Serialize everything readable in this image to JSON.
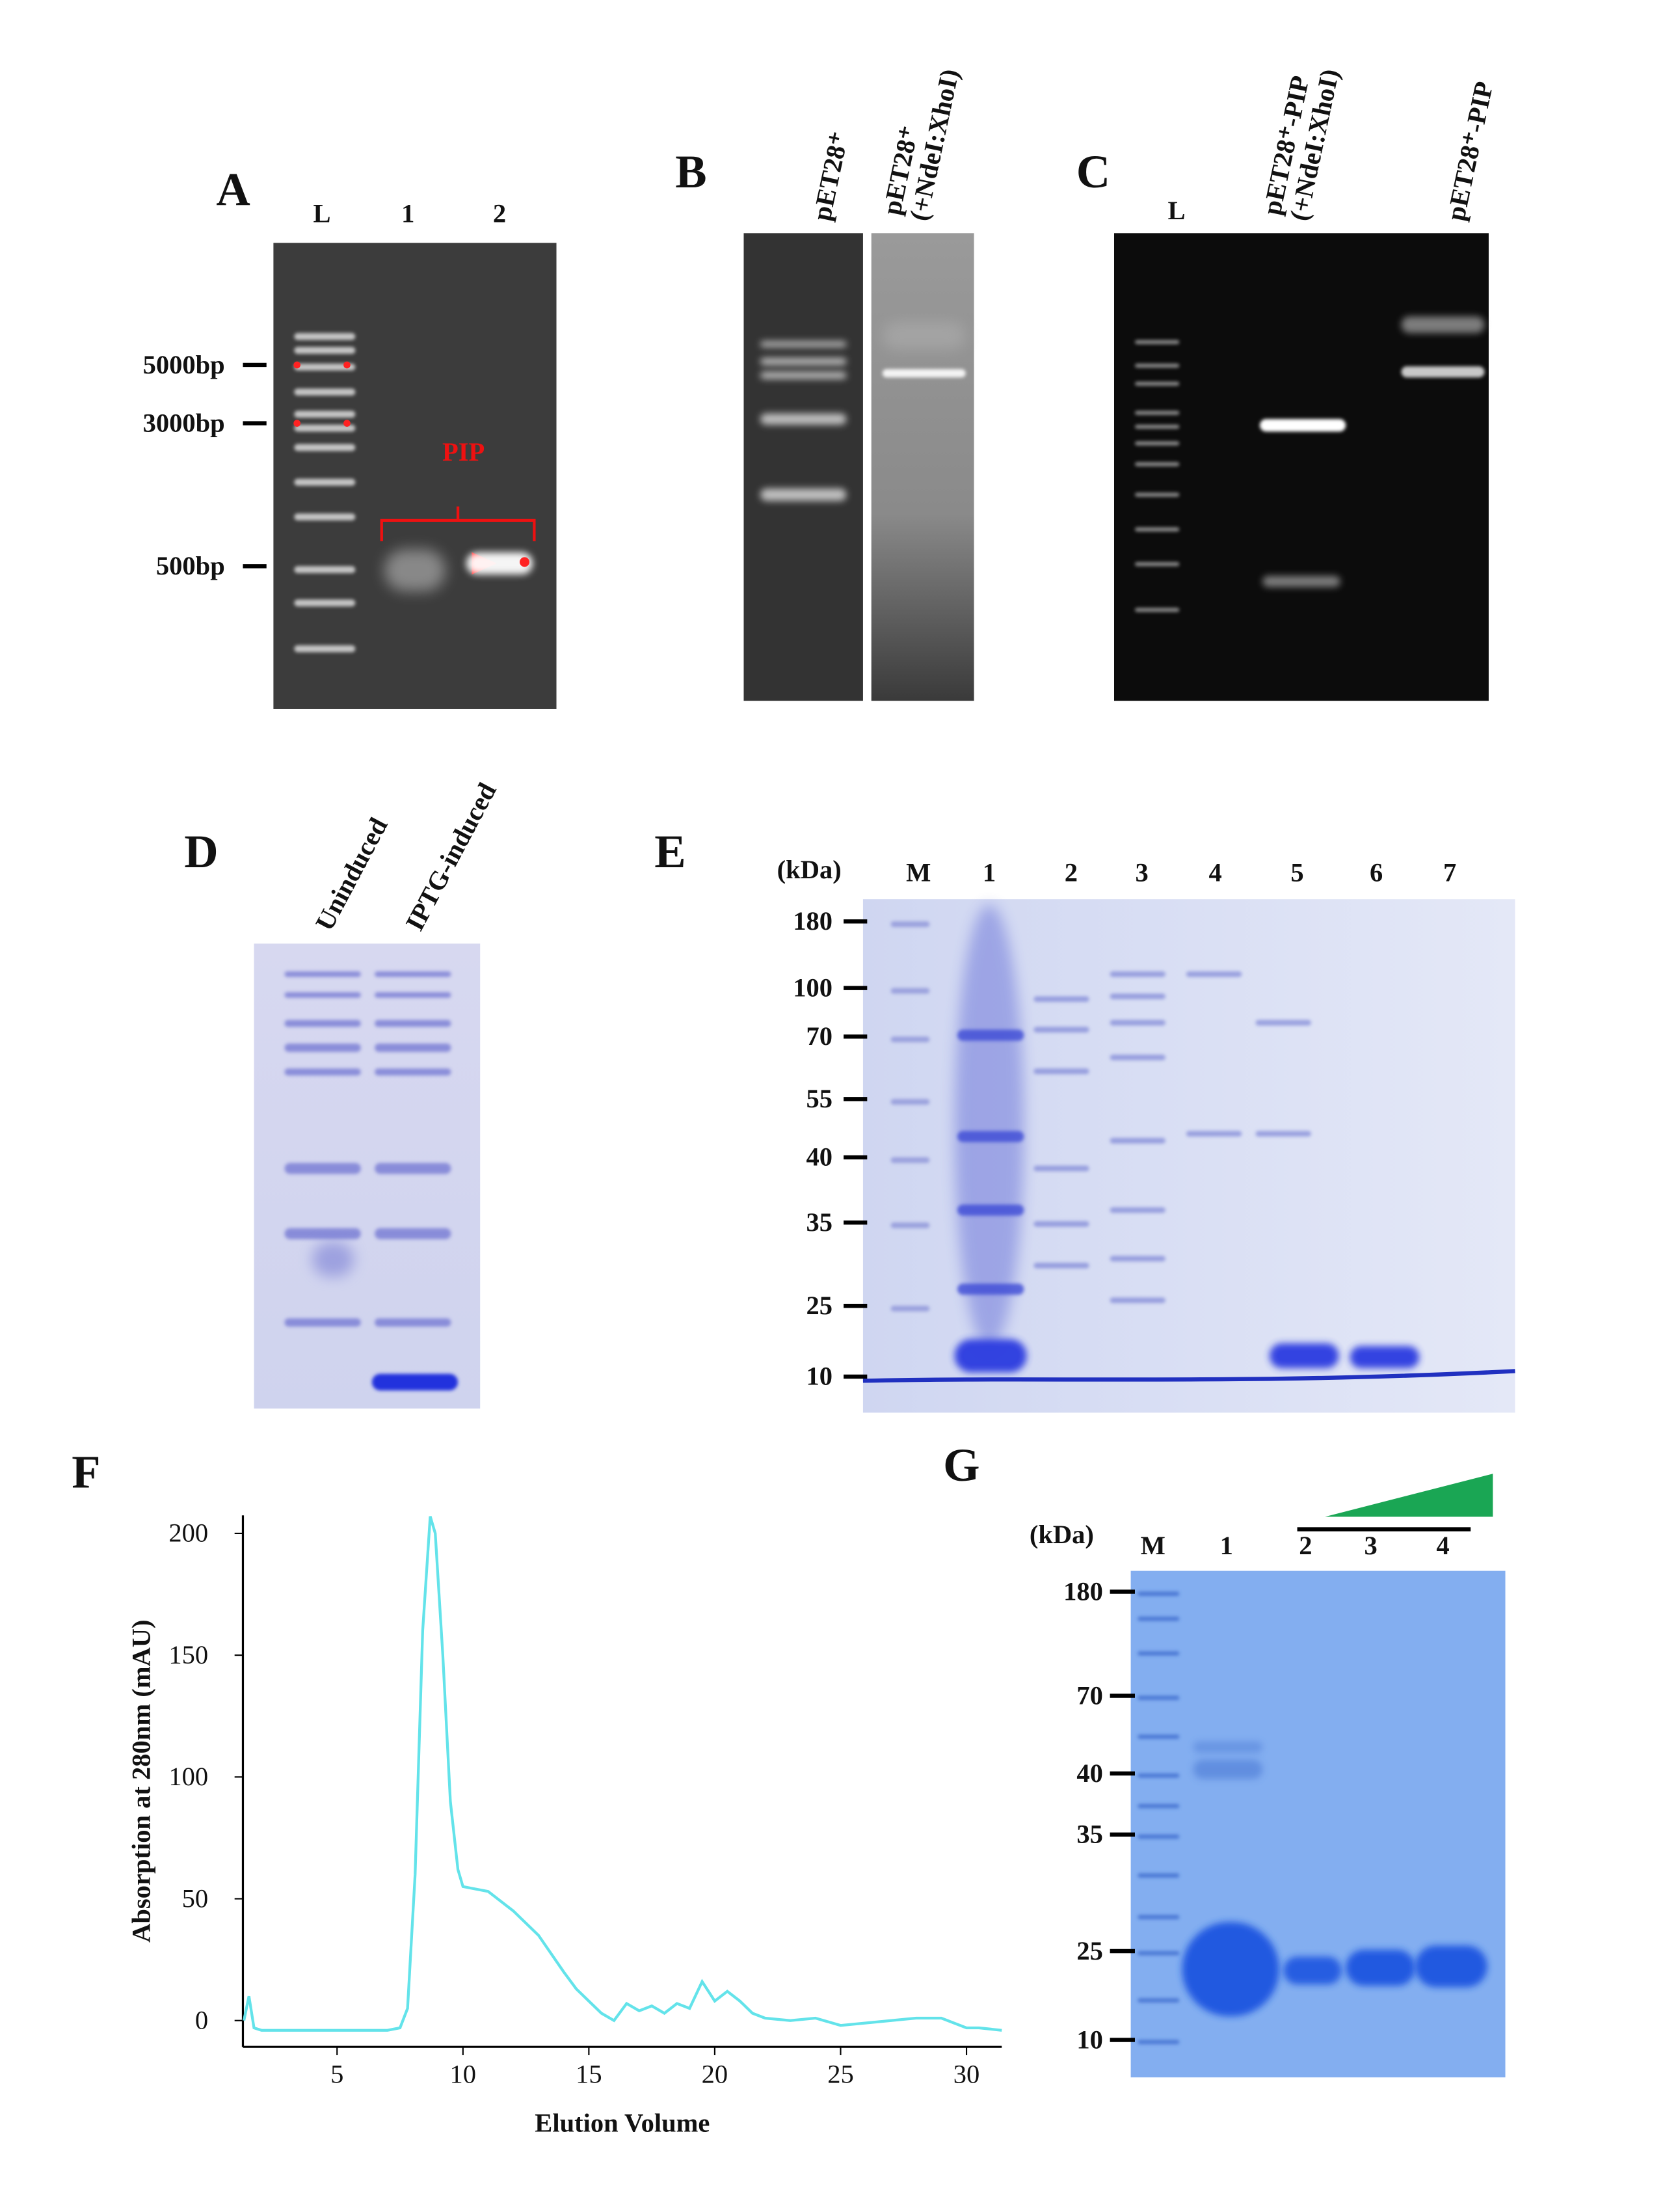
{
  "panels": [
    {
      "label": "A",
      "lanes": [
        "L",
        "1",
        "2"
      ],
      "markers": [
        "5000bp",
        "3000bp",
        "500bp"
      ],
      "annotation": "PIP"
    },
    {
      "label": "B",
      "lanes": [
        [
          "pET28⁺"
        ],
        [
          "pET28⁺",
          "(+NdeI:XhoI)"
        ]
      ]
    },
    {
      "label": "C",
      "lanes": [
        [
          "L"
        ],
        [
          "pET28⁺-PIP",
          "(+NdeI:XhoI)"
        ],
        [
          "pET28⁺-PIP"
        ]
      ]
    },
    {
      "label": "D",
      "lanes": [
        [
          "Uninduced"
        ],
        [
          "IPTG-induced"
        ]
      ]
    },
    {
      "label": "E",
      "unit": "(kDa)",
      "lanes": [
        "M",
        "1",
        "2",
        "3",
        "4",
        "5",
        "6",
        "7"
      ],
      "markers": [
        "180",
        "100",
        "70",
        "55",
        "40",
        "35",
        "25",
        "10"
      ]
    },
    {
      "label": "G",
      "unit": "(kDa)",
      "lanes": [
        "M",
        "1",
        "2",
        "3",
        "4"
      ],
      "markers": [
        "180",
        "70",
        "40",
        "35",
        "25",
        "10"
      ]
    }
  ],
  "chart_data": {
    "type": "line",
    "panel_label": "F",
    "xlabel": "Elution Volume",
    "ylabel": "Absorption at 280nm (mAU)",
    "color": "#63e3ea",
    "x": [
      1.3,
      1.5,
      1.7,
      2,
      3,
      4,
      5,
      6,
      7,
      7.5,
      7.8,
      8.1,
      8.4,
      8.7,
      8.9,
      9.2,
      9.5,
      9.8,
      10,
      10.5,
      11,
      12,
      13,
      14,
      14.5,
      15,
      15.5,
      16,
      16.5,
      17,
      17.5,
      18,
      18.5,
      19,
      19.5,
      20,
      20.5,
      21,
      21.5,
      22,
      23,
      24,
      25,
      26,
      27,
      28,
      29,
      30,
      30.5,
      31.4
    ],
    "values": [
      0,
      10,
      -3,
      -4,
      -4,
      -4,
      -4,
      -4,
      -4,
      -3,
      5,
      60,
      160,
      207,
      200,
      150,
      90,
      62,
      55,
      54,
      53,
      45,
      35,
      20,
      13,
      8,
      3,
      0,
      7,
      4,
      6,
      3,
      7,
      5,
      16,
      8,
      12,
      8,
      3,
      1,
      0,
      1,
      -2,
      -1,
      0,
      1,
      1,
      -3,
      -3,
      -4
    ],
    "xlim": [
      1.26,
      31.4
    ],
    "ylim": [
      -10.8,
      207.4
    ],
    "xticks": [
      5,
      10,
      15,
      20,
      25,
      30
    ],
    "yticks": [
      0,
      50,
      100,
      150,
      200
    ]
  }
}
